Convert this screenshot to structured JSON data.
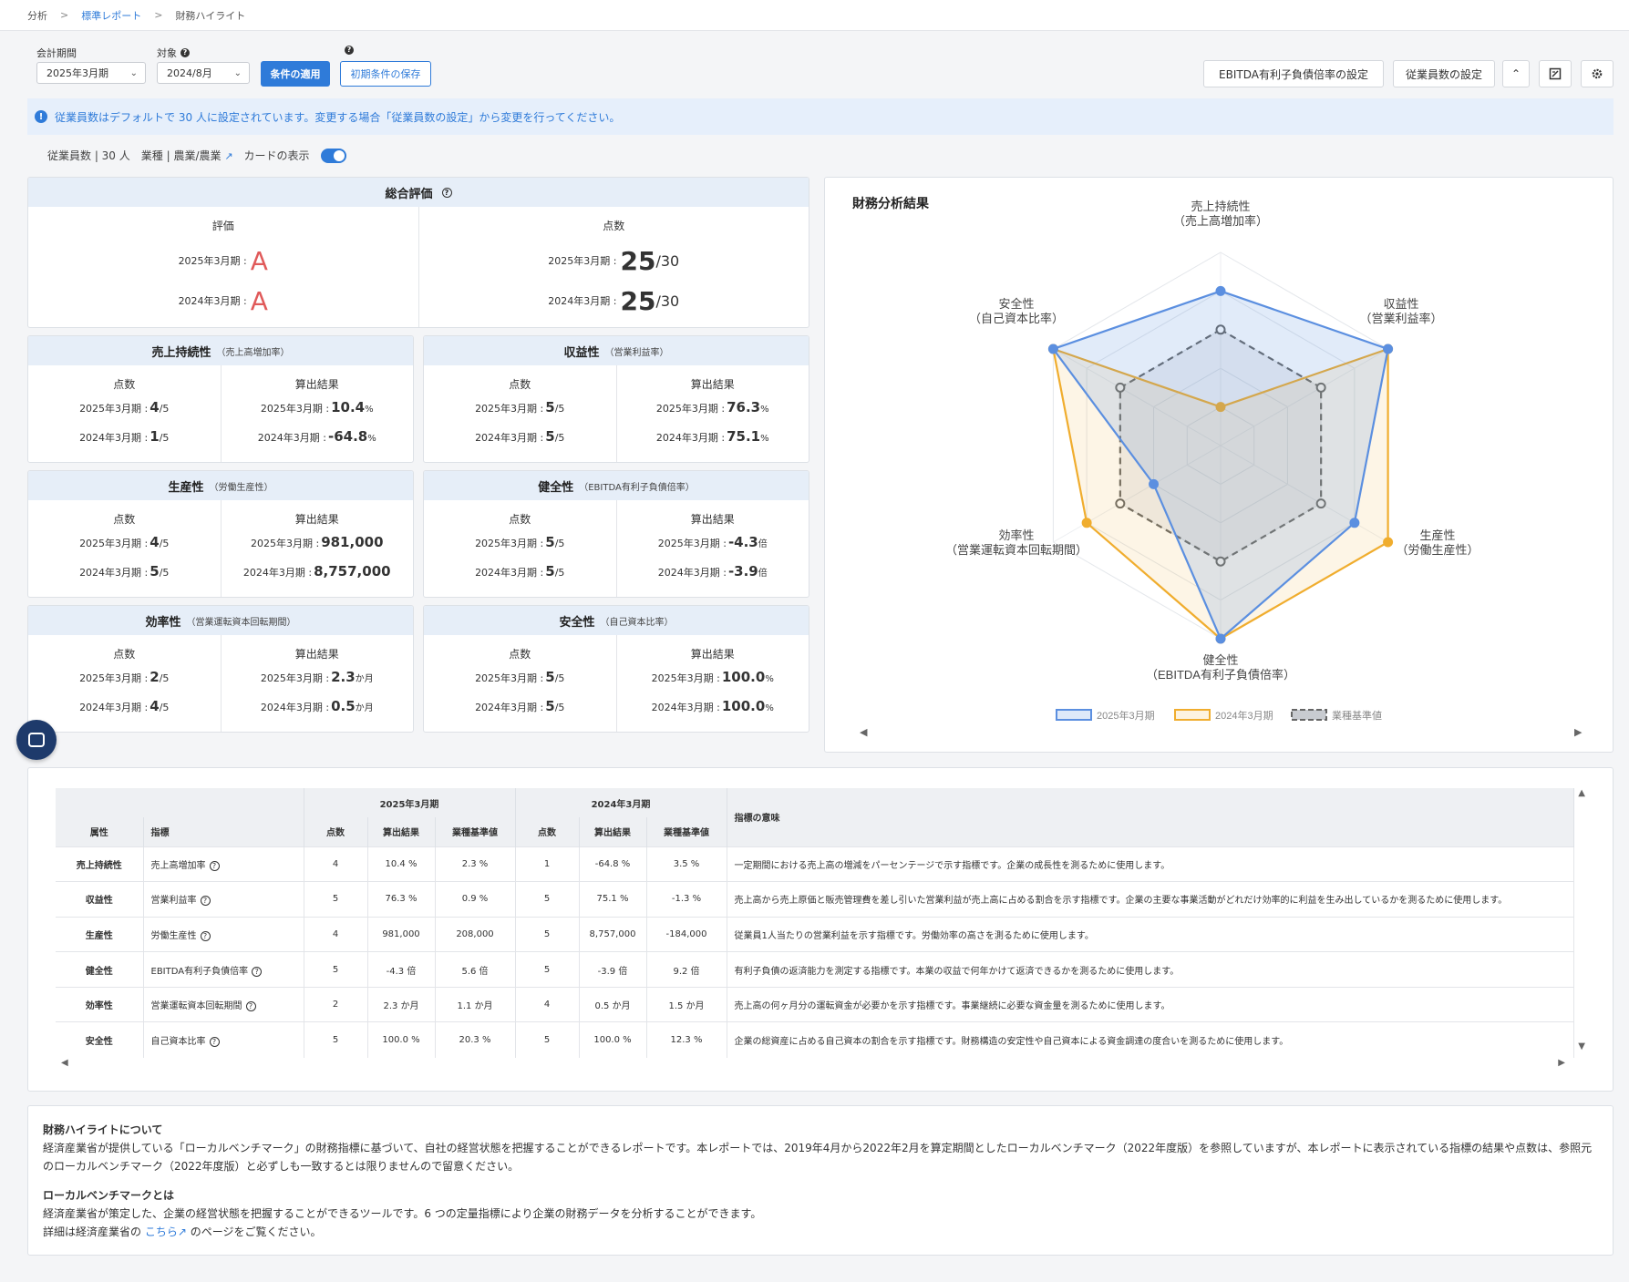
{
  "breadcrumb": {
    "items": [
      "分析",
      "標準レポート",
      "財務ハイライト"
    ]
  },
  "controls": {
    "period_label": "会計期間",
    "period_value": "2025年3月期",
    "target_label": "対象",
    "target_value": "2024/8月",
    "apply_button": "条件の適用",
    "save_button": "初期条件の保存",
    "ebitda_button": "EBITDA有利子負債倍率の設定",
    "employees_button": "従業員数の設定"
  },
  "banner": {
    "text": "従業員数はデフォルトで 30 人に設定されています。変更する場合「従業員数の設定」から変更を行ってください。"
  },
  "meta": {
    "employees": "従業員数 | 30 人",
    "industry": "業種 | 農業/農業",
    "card_toggle_label": "カードの表示"
  },
  "overall": {
    "title": "総合評価",
    "grade_title": "評価",
    "score_title": "点数",
    "rows": [
      {
        "period": "2025年3月期 :",
        "grade": "A",
        "score": "25",
        "denominator": "/30"
      },
      {
        "period": "2024年3月期 :",
        "grade": "A",
        "score": "25",
        "denominator": "/30"
      }
    ]
  },
  "metric_cards": [
    {
      "title": "売上持続性",
      "sub": "（売上高増加率）",
      "score_title": "点数",
      "result_title": "算出結果",
      "rows": [
        {
          "period": "2025年3月期 :",
          "score": "4",
          "den": "/5",
          "value": "10.4",
          "unit": "%"
        },
        {
          "period": "2024年3月期 :",
          "score": "1",
          "den": "/5",
          "value": "-64.8",
          "unit": "%"
        }
      ]
    },
    {
      "title": "収益性",
      "sub": "（営業利益率）",
      "score_title": "点数",
      "result_title": "算出結果",
      "rows": [
        {
          "period": "2025年3月期 :",
          "score": "5",
          "den": "/5",
          "value": "76.3",
          "unit": "%"
        },
        {
          "period": "2024年3月期 :",
          "score": "5",
          "den": "/5",
          "value": "75.1",
          "unit": "%"
        }
      ]
    },
    {
      "title": "生産性",
      "sub": "（労働生産性）",
      "score_title": "点数",
      "result_title": "算出結果",
      "rows": [
        {
          "period": "2025年3月期 :",
          "score": "4",
          "den": "/5",
          "value": "981,000",
          "unit": ""
        },
        {
          "period": "2024年3月期 :",
          "score": "5",
          "den": "/5",
          "value": "8,757,000",
          "unit": ""
        }
      ]
    },
    {
      "title": "健全性",
      "sub": "（EBITDA有利子負債倍率）",
      "score_title": "点数",
      "result_title": "算出結果",
      "rows": [
        {
          "period": "2025年3月期 :",
          "score": "5",
          "den": "/5",
          "value": "-4.3",
          "unit": "倍"
        },
        {
          "period": "2024年3月期 :",
          "score": "5",
          "den": "/5",
          "value": "-3.9",
          "unit": "倍"
        }
      ]
    },
    {
      "title": "効率性",
      "sub": "（営業運転資本回転期間）",
      "score_title": "点数",
      "result_title": "算出結果",
      "rows": [
        {
          "period": "2025年3月期 :",
          "score": "2",
          "den": "/5",
          "value": "2.3",
          "unit": "か月"
        },
        {
          "period": "2024年3月期 :",
          "score": "4",
          "den": "/5",
          "value": "0.5",
          "unit": "か月"
        }
      ]
    },
    {
      "title": "安全性",
      "sub": "（自己資本比率）",
      "score_title": "点数",
      "result_title": "算出結果",
      "rows": [
        {
          "period": "2025年3月期 :",
          "score": "5",
          "den": "/5",
          "value": "100.0",
          "unit": "%"
        },
        {
          "period": "2024年3月期 :",
          "score": "5",
          "den": "/5",
          "value": "100.0",
          "unit": "%"
        }
      ]
    }
  ],
  "radar": {
    "title": "財務分析結果",
    "axes": [
      {
        "line1": "売上持続性",
        "line2": "（売上高増加率）"
      },
      {
        "line1": "収益性",
        "line2": "（営業利益率）"
      },
      {
        "line1": "生産性",
        "line2": "（労働生産性）"
      },
      {
        "line1": "健全性",
        "line2": "（EBITDA有利子負債倍率）"
      },
      {
        "line1": "効率性",
        "line2": "（営業運転資本回転期間）"
      },
      {
        "line1": "安全性",
        "line2": "（自己資本比率）"
      }
    ],
    "legend": [
      "2025年3月期",
      "2024年3月期",
      "業種基準値"
    ]
  },
  "chart_data": {
    "type": "radar",
    "categories": [
      "売上持続性（売上高増加率）",
      "収益性（営業利益率）",
      "生産性（労働生産性）",
      "健全性（EBITDA有利子負債倍率）",
      "効率性（営業運転資本回転期間）",
      "安全性（自己資本比率）"
    ],
    "range": [
      0,
      5
    ],
    "series": [
      {
        "name": "2025年3月期",
        "values": [
          4,
          5,
          4,
          5,
          2,
          5
        ],
        "color": "#5b8fe0"
      },
      {
        "name": "2024年3月期",
        "values": [
          1,
          5,
          5,
          5,
          4,
          5
        ],
        "color": "#f0ad2e"
      },
      {
        "name": "業種基準値",
        "values": [
          3,
          3,
          3,
          3,
          3,
          3
        ],
        "color": "#666666"
      }
    ]
  },
  "table": {
    "group_2025": "2025年3月期",
    "group_2024": "2024年3月期",
    "headers": {
      "attr": "属性",
      "metric": "指標",
      "score": "点数",
      "result": "算出結果",
      "benchmark": "業種基準値",
      "meaning": "指標の意味"
    },
    "rows": [
      {
        "attr": "売上持続性",
        "metric": "売上高増加率",
        "s25": "4",
        "r25": "10.4 %",
        "b25": "2.3 %",
        "s24": "1",
        "r24": "-64.8 %",
        "b24": "3.5 %",
        "meaning": "一定期間における売上高の増減をパーセンテージで示す指標です。企業の成長性を測るために使用します。"
      },
      {
        "attr": "収益性",
        "metric": "営業利益率",
        "s25": "5",
        "r25": "76.3 %",
        "b25": "0.9 %",
        "s24": "5",
        "r24": "75.1 %",
        "b24": "-1.3 %",
        "meaning": "売上高から売上原価と販売管理費を差し引いた営業利益が売上高に占める割合を示す指標です。企業の主要な事業活動がどれだけ効率的に利益を生み出しているかを測るために使用します。"
      },
      {
        "attr": "生産性",
        "metric": "労働生産性",
        "s25": "4",
        "r25": "981,000",
        "b25": "208,000",
        "s24": "5",
        "r24": "8,757,000",
        "b24": "-184,000",
        "meaning": "従業員1人当たりの営業利益を示す指標です。労働効率の高さを測るために使用します。"
      },
      {
        "attr": "健全性",
        "metric": "EBITDA有利子負債倍率",
        "s25": "5",
        "r25": "-4.3 倍",
        "b25": "5.6 倍",
        "s24": "5",
        "r24": "-3.9 倍",
        "b24": "9.2 倍",
        "meaning": "有利子負債の返済能力を測定する指標です。本業の収益で何年かけて返済できるかを測るために使用します。"
      },
      {
        "attr": "効率性",
        "metric": "営業運転資本回転期間",
        "s25": "2",
        "r25": "2.3 か月",
        "b25": "1.1 か月",
        "s24": "4",
        "r24": "0.5 か月",
        "b24": "1.5 か月",
        "meaning": "売上高の何ヶ月分の運転資金が必要かを示す指標です。事業継続に必要な資金量を測るために使用します。"
      },
      {
        "attr": "安全性",
        "metric": "自己資本比率",
        "s25": "5",
        "r25": "100.0 %",
        "b25": "20.3 %",
        "s24": "5",
        "r24": "100.0 %",
        "b24": "12.3 %",
        "meaning": "企業の総資産に占める自己資本の割合を示す指標です。財務構造の安定性や自己資本による資金調達の度合いを測るために使用します。"
      }
    ]
  },
  "about": {
    "title1": "財務ハイライトについて",
    "text1": "経済産業省が提供している「ローカルベンチマーク」の財務指標に基づいて、自社の経営状態を把握することができるレポートです。本レポートでは、2019年4月から2022年2月を算定期間としたローカルベンチマーク（2022年度版）を参照していますが、本レポートに表示されている指標の結果や点数は、参照元のローカルベンチマーク（2022年度版）と必ずしも一致するとは限りませんので留意ください。",
    "title2": "ローカルベンチマークとは",
    "text2": "経済産業省が策定した、企業の経営状態を把握することができるツールです。6 つの定量指標により企業の財務データを分析することができます。",
    "text3_pre": "詳細は経済産業省の",
    "text3_link": "こちら",
    "text3_post": "のページをご覧ください。"
  }
}
